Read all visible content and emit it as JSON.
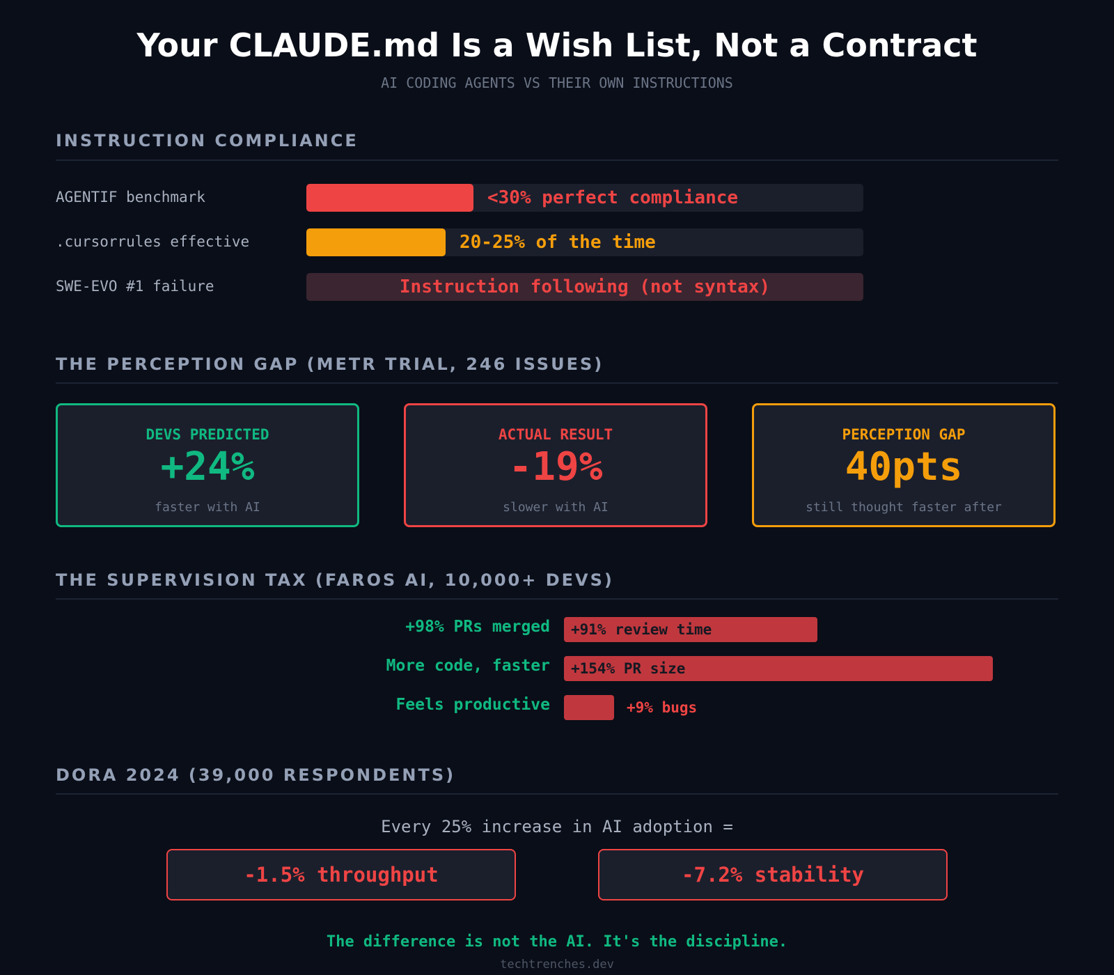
{
  "header": {
    "title": "Your CLAUDE.md Is a Wish List, Not a Contract",
    "subtitle": "AI CODING AGENTS VS THEIR OWN INSTRUCTIONS"
  },
  "colors": {
    "background": "#0a0e18",
    "red": "#ef4444",
    "amber": "#f59e0b",
    "green": "#10b981",
    "card_bg": "#1b1f2c"
  },
  "compliance": {
    "title": "INSTRUCTION COMPLIANCE",
    "rows": [
      {
        "label": "AGENTIF benchmark",
        "value_text": "<30% perfect compliance",
        "fill_fraction": 0.3,
        "color": "#ef4444"
      },
      {
        "label": ".cursorrules effective",
        "value_text": "20-25% of the time",
        "fill_fraction": 0.25,
        "color": "#f59e0b"
      },
      {
        "label": "SWE-EVO #1 failure",
        "value_text": "Instruction following (not syntax)",
        "fill_fraction": 1.0,
        "color": "#3a2530"
      }
    ]
  },
  "perception": {
    "title": "THE PERCEPTION GAP (METR TRIAL, 246 ISSUES)",
    "cards": [
      {
        "label": "DEVS PREDICTED",
        "value": "+24%",
        "sub": "faster with AI",
        "color": "#10b981"
      },
      {
        "label": "ACTUAL RESULT",
        "value": "-19%",
        "sub": "slower with AI",
        "color": "#ef4444"
      },
      {
        "label": "PERCEPTION GAP",
        "value": "40pts",
        "sub": "still thought faster after",
        "color": "#f59e0b"
      }
    ]
  },
  "supervision": {
    "title": "THE SUPERVISION TAX (FAROS AI, 10,000+ DEVS)",
    "rows": [
      {
        "left": "+98% PRs merged",
        "right": "+91% review time",
        "value": 91
      },
      {
        "left": "More code, faster",
        "right": "+154% PR size",
        "value": 154
      },
      {
        "left": "Feels productive",
        "right": "+9% bugs",
        "value": 9
      }
    ]
  },
  "dora": {
    "title": "DORA 2024 (39,000 RESPONDENTS)",
    "intro": "Every 25% increase in AI adoption =",
    "boxes": [
      "-1.5% throughput",
      "-7.2% stability"
    ]
  },
  "footer": {
    "quote": "The difference is not the AI. It's the discipline.",
    "site": "techtrenches.dev"
  }
}
